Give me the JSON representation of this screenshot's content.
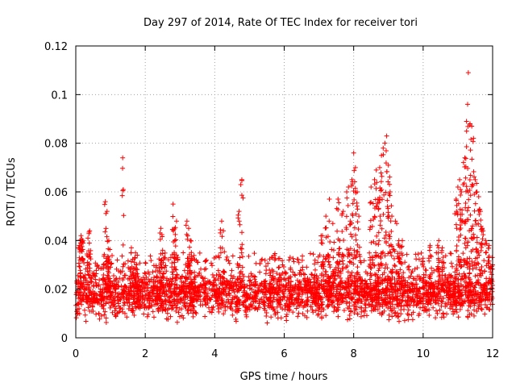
{
  "chart_data": {
    "type": "scatter",
    "title": "Day 297 of 2014, Rate Of TEC Index for receiver tori",
    "xlabel": "GPS time / hours",
    "ylabel": "ROTI / TECUs",
    "xlim": [
      0,
      12
    ],
    "ylim": [
      0,
      0.12
    ],
    "xticks": [
      0,
      2,
      4,
      6,
      8,
      10,
      12
    ],
    "yticks": [
      0,
      0.02,
      0.04,
      0.06,
      0.08,
      0.1,
      0.12
    ],
    "xtick_labels": [
      "0",
      "2",
      "4",
      "6",
      "8",
      "10",
      "12"
    ],
    "ytick_labels": [
      "0",
      "0.02",
      "0.04",
      "0.06",
      "0.08",
      "0.1",
      "0.12"
    ],
    "grid": true,
    "marker": "+",
    "color": "#ff0000",
    "series": [
      {
        "name": "ROTI",
        "baseline_band": [
          0.005,
          0.025
        ],
        "x": [
          0.1,
          0.15,
          0.2,
          0.35,
          0.4,
          0.85,
          0.9,
          0.95,
          1.35,
          1.6,
          1.7,
          1.75,
          2.45,
          2.5,
          2.8,
          2.85,
          2.9,
          3.2,
          3.25,
          3.3,
          4.2,
          4.25,
          4.7,
          4.75,
          4.78,
          7.1,
          7.2,
          7.3,
          7.4,
          7.55,
          7.6,
          7.7,
          7.8,
          7.85,
          7.9,
          7.95,
          8.0,
          8.05,
          8.1,
          8.15,
          8.5,
          8.6,
          8.65,
          8.7,
          8.75,
          8.8,
          8.85,
          8.9,
          8.95,
          9.0,
          9.05,
          9.1,
          9.2,
          9.3,
          9.4,
          10.2,
          10.45,
          10.55,
          10.95,
          11.0,
          11.05,
          11.1,
          11.15,
          11.2,
          11.25,
          11.28,
          11.3,
          11.35,
          11.4,
          11.45,
          11.5,
          11.55,
          11.6,
          11.65,
          11.7,
          11.8,
          11.9,
          12.0
        ],
        "y": [
          0.038,
          0.042,
          0.04,
          0.041,
          0.044,
          0.056,
          0.052,
          0.04,
          0.074,
          0.037,
          0.033,
          0.03,
          0.045,
          0.036,
          0.055,
          0.04,
          0.048,
          0.048,
          0.045,
          0.04,
          0.048,
          0.044,
          0.052,
          0.063,
          0.065,
          0.042,
          0.05,
          0.057,
          0.047,
          0.057,
          0.04,
          0.052,
          0.06,
          0.062,
          0.048,
          0.065,
          0.076,
          0.07,
          0.06,
          0.05,
          0.062,
          0.065,
          0.069,
          0.057,
          0.07,
          0.075,
          0.078,
          0.08,
          0.083,
          0.071,
          0.06,
          0.05,
          0.048,
          0.04,
          0.04,
          0.038,
          0.04,
          0.037,
          0.057,
          0.062,
          0.065,
          0.06,
          0.063,
          0.074,
          0.085,
          0.096,
          0.109,
          0.088,
          0.087,
          0.082,
          0.065,
          0.06,
          0.058,
          0.052,
          0.045,
          0.04,
          0.038,
          0.03
        ]
      }
    ]
  }
}
